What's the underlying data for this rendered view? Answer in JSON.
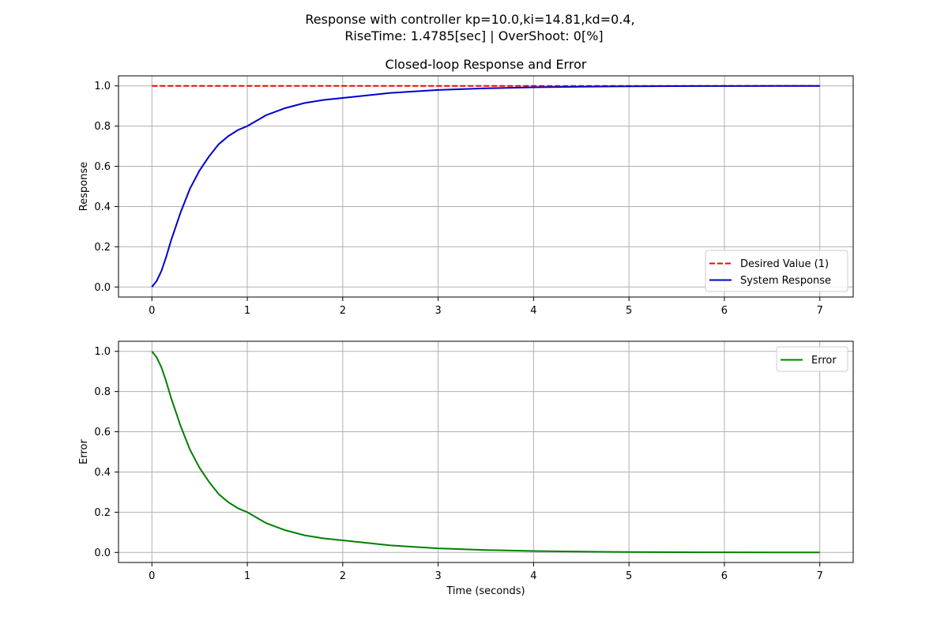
{
  "suptitle": {
    "line1": "Response with controller kp=10.0,ki=14.81,kd=0.4,",
    "line2": "RiseTime: 1.4785[sec] | OverShoot: 0[%]"
  },
  "chart_data": [
    {
      "type": "line",
      "title": "Closed-loop Response and Error",
      "xlabel": "",
      "ylabel": "Response",
      "xlim": [
        -0.35,
        7.35
      ],
      "ylim": [
        -0.05,
        1.05
      ],
      "xticks": [
        0,
        1,
        2,
        3,
        4,
        5,
        6,
        7
      ],
      "yticks": [
        0.0,
        0.2,
        0.4,
        0.6,
        0.8,
        1.0
      ],
      "xtick_labels": [
        "0",
        "1",
        "2",
        "3",
        "4",
        "5",
        "6",
        "7"
      ],
      "ytick_labels": [
        "0.0",
        "0.2",
        "0.4",
        "0.6",
        "0.8",
        "1.0"
      ],
      "grid": true,
      "legend": "lower-right",
      "series": [
        {
          "name": "Desired Value (1)",
          "color": "#ff0000",
          "style": "dashed",
          "x": [
            0,
            7
          ],
          "y": [
            1.0,
            1.0
          ]
        },
        {
          "name": "System Response",
          "color": "#0000cc",
          "style": "solid",
          "x": [
            0,
            0.05,
            0.1,
            0.15,
            0.2,
            0.25,
            0.3,
            0.4,
            0.5,
            0.6,
            0.7,
            0.8,
            0.9,
            1.0,
            1.2,
            1.4,
            1.6,
            1.8,
            2.0,
            2.5,
            3.0,
            3.5,
            4.0,
            4.5,
            5.0,
            5.5,
            6.0,
            6.5,
            7.0
          ],
          "y": [
            0.0,
            0.03,
            0.08,
            0.15,
            0.23,
            0.3,
            0.37,
            0.49,
            0.58,
            0.65,
            0.71,
            0.75,
            0.78,
            0.8,
            0.855,
            0.89,
            0.915,
            0.93,
            0.94,
            0.965,
            0.98,
            0.988,
            0.993,
            0.996,
            0.998,
            0.999,
            0.9995,
            0.9998,
            1.0
          ]
        }
      ]
    },
    {
      "type": "line",
      "title": "",
      "xlabel": "Time (seconds)",
      "ylabel": "Error",
      "xlim": [
        -0.35,
        7.35
      ],
      "ylim": [
        -0.05,
        1.05
      ],
      "xticks": [
        0,
        1,
        2,
        3,
        4,
        5,
        6,
        7
      ],
      "yticks": [
        0.0,
        0.2,
        0.4,
        0.6,
        0.8,
        1.0
      ],
      "xtick_labels": [
        "0",
        "1",
        "2",
        "3",
        "4",
        "5",
        "6",
        "7"
      ],
      "ytick_labels": [
        "0.0",
        "0.2",
        "0.4",
        "0.6",
        "0.8",
        "1.0"
      ],
      "grid": true,
      "legend": "upper-right",
      "series": [
        {
          "name": "Error",
          "color": "#008000",
          "style": "solid",
          "x": [
            0,
            0.05,
            0.1,
            0.15,
            0.2,
            0.25,
            0.3,
            0.4,
            0.5,
            0.6,
            0.7,
            0.8,
            0.9,
            1.0,
            1.2,
            1.4,
            1.6,
            1.8,
            2.0,
            2.5,
            3.0,
            3.5,
            4.0,
            4.5,
            5.0,
            5.5,
            6.0,
            6.5,
            7.0
          ],
          "y": [
            1.0,
            0.97,
            0.92,
            0.85,
            0.77,
            0.7,
            0.63,
            0.51,
            0.42,
            0.35,
            0.29,
            0.25,
            0.22,
            0.2,
            0.145,
            0.11,
            0.085,
            0.07,
            0.06,
            0.035,
            0.02,
            0.012,
            0.007,
            0.004,
            0.002,
            0.001,
            0.0005,
            0.0002,
            0.0
          ]
        }
      ]
    }
  ]
}
